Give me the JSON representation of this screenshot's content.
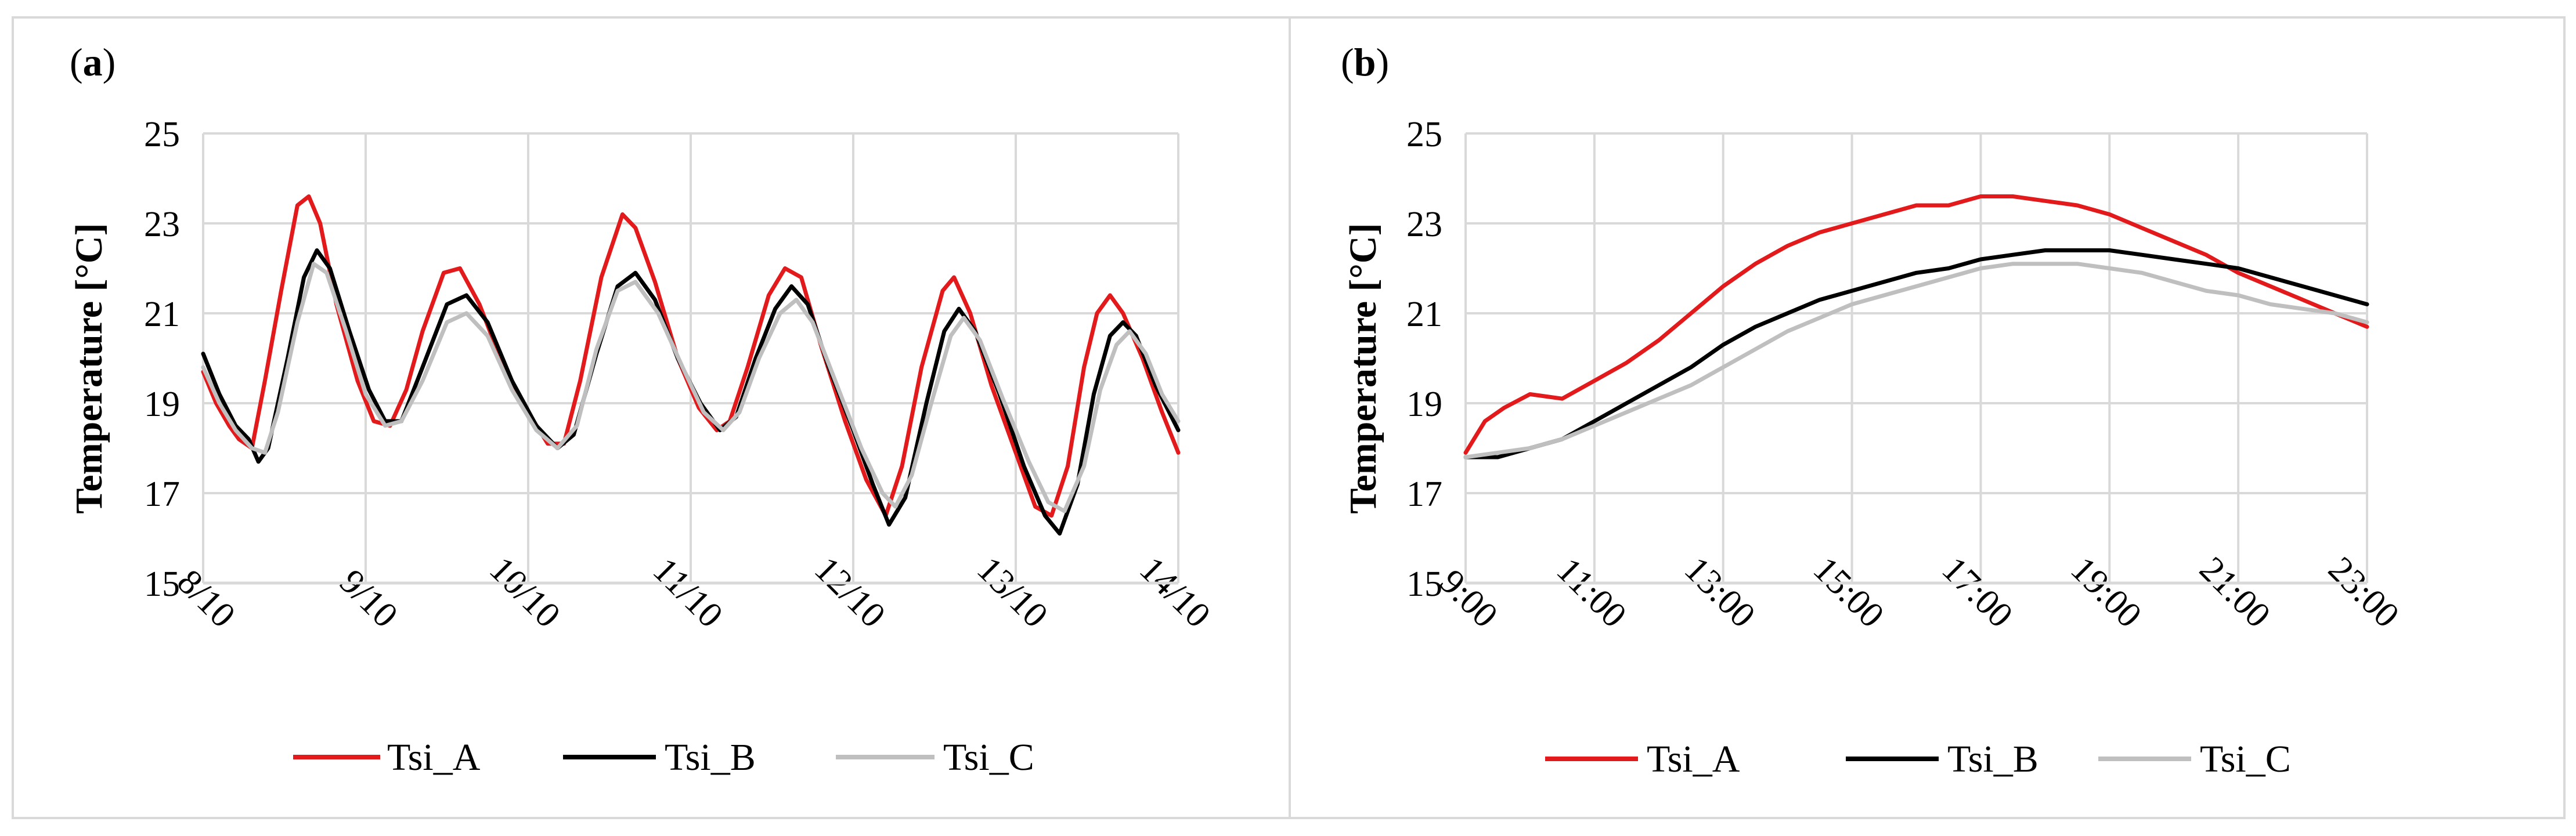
{
  "legend": {
    "items": [
      "Tsi_A",
      "Tsi_B",
      "Tsi_C"
    ]
  },
  "colors": {
    "Tsi_A": "#e31a1c",
    "Tsi_B": "#000000",
    "Tsi_C": "#bfbfbf"
  },
  "chart_data": [
    {
      "type": "line",
      "panel_label": "a",
      "ylabel": "Temperature [°C]",
      "xlabel": "",
      "ylim": [
        15,
        25
      ],
      "yticks": [
        15,
        17,
        19,
        21,
        23,
        25
      ],
      "x_range": [
        0,
        6
      ],
      "x_tick_labels": [
        "8/10",
        "9/10",
        "10/10",
        "11/10",
        "12/10",
        "13/10",
        "14/10"
      ],
      "grid": true,
      "legend_position": "bottom",
      "series": [
        {
          "name": "Tsi_A",
          "points": [
            [
              0,
              19.7
            ],
            [
              0.08,
              19.0
            ],
            [
              0.16,
              18.5
            ],
            [
              0.22,
              18.2
            ],
            [
              0.3,
              18.0
            ],
            [
              0.38,
              19.5
            ],
            [
              0.48,
              21.5
            ],
            [
              0.58,
              23.4
            ],
            [
              0.65,
              23.6
            ],
            [
              0.72,
              23.0
            ],
            [
              0.82,
              21.2
            ],
            [
              0.95,
              19.5
            ],
            [
              1.05,
              18.6
            ],
            [
              1.15,
              18.5
            ],
            [
              1.25,
              19.3
            ],
            [
              1.35,
              20.6
            ],
            [
              1.48,
              21.9
            ],
            [
              1.58,
              22.0
            ],
            [
              1.7,
              21.2
            ],
            [
              1.85,
              19.8
            ],
            [
              2.0,
              18.8
            ],
            [
              2.12,
              18.1
            ],
            [
              2.22,
              18.1
            ],
            [
              2.32,
              19.5
            ],
            [
              2.45,
              21.8
            ],
            [
              2.58,
              23.2
            ],
            [
              2.66,
              22.9
            ],
            [
              2.78,
              21.7
            ],
            [
              2.92,
              20.0
            ],
            [
              3.05,
              18.9
            ],
            [
              3.16,
              18.4
            ],
            [
              3.24,
              18.6
            ],
            [
              3.35,
              19.8
            ],
            [
              3.48,
              21.4
            ],
            [
              3.58,
              22.0
            ],
            [
              3.68,
              21.8
            ],
            [
              3.8,
              20.3
            ],
            [
              3.95,
              18.6
            ],
            [
              4.08,
              17.3
            ],
            [
              4.2,
              16.5
            ],
            [
              4.3,
              17.6
            ],
            [
              4.42,
              19.8
            ],
            [
              4.55,
              21.5
            ],
            [
              4.62,
              21.8
            ],
            [
              4.72,
              21.0
            ],
            [
              4.85,
              19.4
            ],
            [
              5.0,
              17.9
            ],
            [
              5.12,
              16.7
            ],
            [
              5.22,
              16.5
            ],
            [
              5.32,
              17.6
            ],
            [
              5.42,
              19.8
            ],
            [
              5.5,
              21.0
            ],
            [
              5.58,
              21.4
            ],
            [
              5.66,
              21.0
            ],
            [
              5.78,
              20.0
            ],
            [
              5.9,
              18.8
            ],
            [
              6.0,
              17.9
            ]
          ]
        },
        {
          "name": "Tsi_B",
          "points": [
            [
              0,
              20.1
            ],
            [
              0.1,
              19.2
            ],
            [
              0.2,
              18.5
            ],
            [
              0.28,
              18.2
            ],
            [
              0.34,
              17.7
            ],
            [
              0.4,
              18.0
            ],
            [
              0.52,
              20.0
            ],
            [
              0.62,
              21.8
            ],
            [
              0.7,
              22.4
            ],
            [
              0.78,
              22.0
            ],
            [
              0.9,
              20.6
            ],
            [
              1.02,
              19.3
            ],
            [
              1.12,
              18.6
            ],
            [
              1.22,
              18.6
            ],
            [
              1.35,
              19.8
            ],
            [
              1.5,
              21.2
            ],
            [
              1.62,
              21.4
            ],
            [
              1.75,
              20.8
            ],
            [
              1.9,
              19.5
            ],
            [
              2.05,
              18.5
            ],
            [
              2.18,
              18.0
            ],
            [
              2.28,
              18.3
            ],
            [
              2.42,
              20.1
            ],
            [
              2.55,
              21.6
            ],
            [
              2.66,
              21.9
            ],
            [
              2.78,
              21.3
            ],
            [
              2.92,
              20.0
            ],
            [
              3.06,
              19.0
            ],
            [
              3.18,
              18.4
            ],
            [
              3.28,
              18.7
            ],
            [
              3.4,
              20.0
            ],
            [
              3.52,
              21.1
            ],
            [
              3.62,
              21.6
            ],
            [
              3.72,
              21.2
            ],
            [
              3.85,
              19.8
            ],
            [
              4.0,
              18.4
            ],
            [
              4.12,
              17.2
            ],
            [
              4.22,
              16.3
            ],
            [
              4.32,
              16.9
            ],
            [
              4.45,
              19.0
            ],
            [
              4.56,
              20.6
            ],
            [
              4.65,
              21.1
            ],
            [
              4.75,
              20.6
            ],
            [
              4.9,
              19.2
            ],
            [
              5.05,
              17.6
            ],
            [
              5.18,
              16.5
            ],
            [
              5.27,
              16.1
            ],
            [
              5.38,
              17.2
            ],
            [
              5.48,
              19.2
            ],
            [
              5.58,
              20.5
            ],
            [
              5.66,
              20.8
            ],
            [
              5.74,
              20.5
            ],
            [
              5.86,
              19.4
            ],
            [
              6.0,
              18.4
            ]
          ]
        },
        {
          "name": "Tsi_C",
          "points": [
            [
              0,
              19.8
            ],
            [
              0.1,
              19.0
            ],
            [
              0.2,
              18.4
            ],
            [
              0.3,
              18.0
            ],
            [
              0.38,
              17.9
            ],
            [
              0.46,
              18.8
            ],
            [
              0.58,
              20.8
            ],
            [
              0.68,
              22.1
            ],
            [
              0.76,
              21.9
            ],
            [
              0.88,
              20.6
            ],
            [
              1.0,
              19.2
            ],
            [
              1.12,
              18.5
            ],
            [
              1.22,
              18.6
            ],
            [
              1.35,
              19.5
            ],
            [
              1.5,
              20.8
            ],
            [
              1.62,
              21.0
            ],
            [
              1.75,
              20.5
            ],
            [
              1.9,
              19.3
            ],
            [
              2.05,
              18.4
            ],
            [
              2.18,
              18.0
            ],
            [
              2.3,
              18.5
            ],
            [
              2.42,
              20.2
            ],
            [
              2.55,
              21.5
            ],
            [
              2.66,
              21.7
            ],
            [
              2.8,
              21.0
            ],
            [
              2.95,
              19.8
            ],
            [
              3.08,
              18.8
            ],
            [
              3.2,
              18.4
            ],
            [
              3.3,
              18.8
            ],
            [
              3.42,
              20.0
            ],
            [
              3.55,
              21.0
            ],
            [
              3.65,
              21.3
            ],
            [
              3.75,
              20.8
            ],
            [
              3.9,
              19.4
            ],
            [
              4.05,
              18.0
            ],
            [
              4.18,
              17.0
            ],
            [
              4.26,
              16.7
            ],
            [
              4.36,
              17.4
            ],
            [
              4.48,
              19.0
            ],
            [
              4.6,
              20.5
            ],
            [
              4.68,
              20.9
            ],
            [
              4.78,
              20.4
            ],
            [
              4.92,
              19.1
            ],
            [
              5.08,
              17.7
            ],
            [
              5.2,
              16.8
            ],
            [
              5.3,
              16.6
            ],
            [
              5.42,
              17.6
            ],
            [
              5.52,
              19.3
            ],
            [
              5.62,
              20.3
            ],
            [
              5.7,
              20.6
            ],
            [
              5.8,
              20.1
            ],
            [
              5.9,
              19.2
            ],
            [
              6.0,
              18.6
            ]
          ]
        }
      ]
    },
    {
      "type": "line",
      "panel_label": "b",
      "ylabel": "Temperature [°C]",
      "xlabel": "",
      "ylim": [
        15,
        25
      ],
      "yticks": [
        15,
        17,
        19,
        21,
        23,
        25
      ],
      "x_range": [
        9,
        23
      ],
      "x_tick_labels": [
        "9:00",
        "11:00",
        "13:00",
        "15:00",
        "17:00",
        "19:00",
        "21:00",
        "23:00"
      ],
      "grid": true,
      "legend_position": "bottom",
      "series": [
        {
          "name": "Tsi_A",
          "points": [
            [
              9.0,
              17.9
            ],
            [
              9.3,
              18.6
            ],
            [
              9.6,
              18.9
            ],
            [
              10.0,
              19.2
            ],
            [
              10.5,
              19.1
            ],
            [
              11.0,
              19.5
            ],
            [
              11.5,
              19.9
            ],
            [
              12.0,
              20.4
            ],
            [
              12.5,
              21.0
            ],
            [
              13.0,
              21.6
            ],
            [
              13.5,
              22.1
            ],
            [
              14.0,
              22.5
            ],
            [
              14.5,
              22.8
            ],
            [
              15.0,
              23.0
            ],
            [
              15.5,
              23.2
            ],
            [
              16.0,
              23.4
            ],
            [
              16.5,
              23.4
            ],
            [
              17.0,
              23.6
            ],
            [
              17.5,
              23.6
            ],
            [
              18.0,
              23.5
            ],
            [
              18.5,
              23.4
            ],
            [
              19.0,
              23.2
            ],
            [
              19.5,
              22.9
            ],
            [
              20.0,
              22.6
            ],
            [
              20.5,
              22.3
            ],
            [
              21.0,
              21.9
            ],
            [
              21.5,
              21.6
            ],
            [
              22.0,
              21.3
            ],
            [
              22.5,
              21.0
            ],
            [
              23.0,
              20.7
            ]
          ]
        },
        {
          "name": "Tsi_B",
          "points": [
            [
              9.0,
              17.8
            ],
            [
              9.5,
              17.8
            ],
            [
              10.0,
              18.0
            ],
            [
              10.5,
              18.2
            ],
            [
              11.0,
              18.6
            ],
            [
              11.5,
              19.0
            ],
            [
              12.0,
              19.4
            ],
            [
              12.5,
              19.8
            ],
            [
              13.0,
              20.3
            ],
            [
              13.5,
              20.7
            ],
            [
              14.0,
              21.0
            ],
            [
              14.5,
              21.3
            ],
            [
              15.0,
              21.5
            ],
            [
              15.5,
              21.7
            ],
            [
              16.0,
              21.9
            ],
            [
              16.5,
              22.0
            ],
            [
              17.0,
              22.2
            ],
            [
              17.5,
              22.3
            ],
            [
              18.0,
              22.4
            ],
            [
              18.5,
              22.4
            ],
            [
              19.0,
              22.4
            ],
            [
              19.5,
              22.3
            ],
            [
              20.0,
              22.2
            ],
            [
              20.5,
              22.1
            ],
            [
              21.0,
              22.0
            ],
            [
              21.5,
              21.8
            ],
            [
              22.0,
              21.6
            ],
            [
              22.5,
              21.4
            ],
            [
              23.0,
              21.2
            ]
          ]
        },
        {
          "name": "Tsi_C",
          "points": [
            [
              9.0,
              17.8
            ],
            [
              9.5,
              17.9
            ],
            [
              10.0,
              18.0
            ],
            [
              10.5,
              18.2
            ],
            [
              11.0,
              18.5
            ],
            [
              11.5,
              18.8
            ],
            [
              12.0,
              19.1
            ],
            [
              12.5,
              19.4
            ],
            [
              13.0,
              19.8
            ],
            [
              13.5,
              20.2
            ],
            [
              14.0,
              20.6
            ],
            [
              14.5,
              20.9
            ],
            [
              15.0,
              21.2
            ],
            [
              15.5,
              21.4
            ],
            [
              16.0,
              21.6
            ],
            [
              16.5,
              21.8
            ],
            [
              17.0,
              22.0
            ],
            [
              17.5,
              22.1
            ],
            [
              18.0,
              22.1
            ],
            [
              18.5,
              22.1
            ],
            [
              19.0,
              22.0
            ],
            [
              19.5,
              21.9
            ],
            [
              20.0,
              21.7
            ],
            [
              20.5,
              21.5
            ],
            [
              21.0,
              21.4
            ],
            [
              21.5,
              21.2
            ],
            [
              22.0,
              21.1
            ],
            [
              22.5,
              21.0
            ],
            [
              23.0,
              20.8
            ]
          ]
        }
      ]
    }
  ]
}
